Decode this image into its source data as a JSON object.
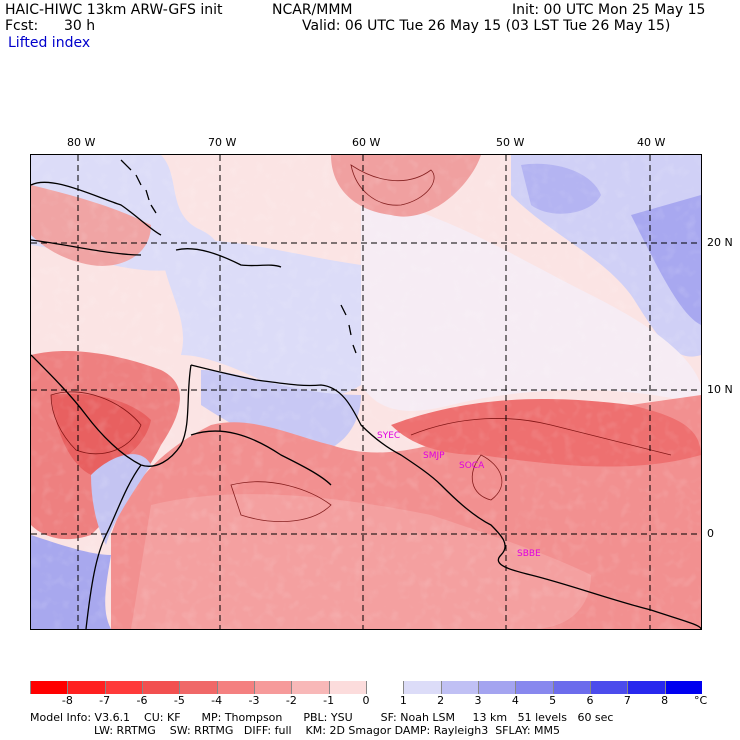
{
  "header": {
    "model_title": "HAIC-HIWC 13km ARW-GFS init",
    "org": "NCAR/MMM",
    "init": "Init: 00 UTC Mon 25 May 15",
    "fcst_label": "Fcst:",
    "fcst_value": "30 h",
    "valid": "Valid: 06 UTC Tue 26 May 15 (03 LST Tue 26 May 15)",
    "field": "Lifted index"
  },
  "map": {
    "lon_labels": [
      "80 W",
      "70 W",
      "60 W",
      "50 W",
      "40 W"
    ],
    "lat_labels": [
      "20 N",
      "10 N",
      "0"
    ],
    "stations": [
      "SYEC",
      "SMJP",
      "SOCA",
      "SBBE"
    ]
  },
  "colorbar": {
    "ticks": [
      "-8",
      "-7",
      "-6",
      "-5",
      "-4",
      "-3",
      "-2",
      "-1",
      "0",
      "1",
      "2",
      "3",
      "4",
      "5",
      "6",
      "7",
      "8"
    ],
    "unit": "°C",
    "colors": [
      "#ff0000",
      "#ff2020",
      "#ff3a3a",
      "#f25050",
      "#f06868",
      "#f48080",
      "#f69a9a",
      "#f8b8b8",
      "#fcdcdc",
      "#ffffff",
      "#dcdcf8",
      "#c0c0f4",
      "#a4a4f0",
      "#8888ee",
      "#6c6cec",
      "#4c4cec",
      "#2828ee",
      "#0000f0"
    ]
  },
  "footer": {
    "line1": "Model Info: V3.6.1    CU: KF      MP: Thompson      PBL: YSU        SF: Noah LSM     13 km   51 levels   60 sec",
    "line2": "LW: RRTMG    SW: RRTMG   DIFF: full    KM: 2D Smagor DAMP: Rayleigh3  SFLAY: MM5"
  }
}
